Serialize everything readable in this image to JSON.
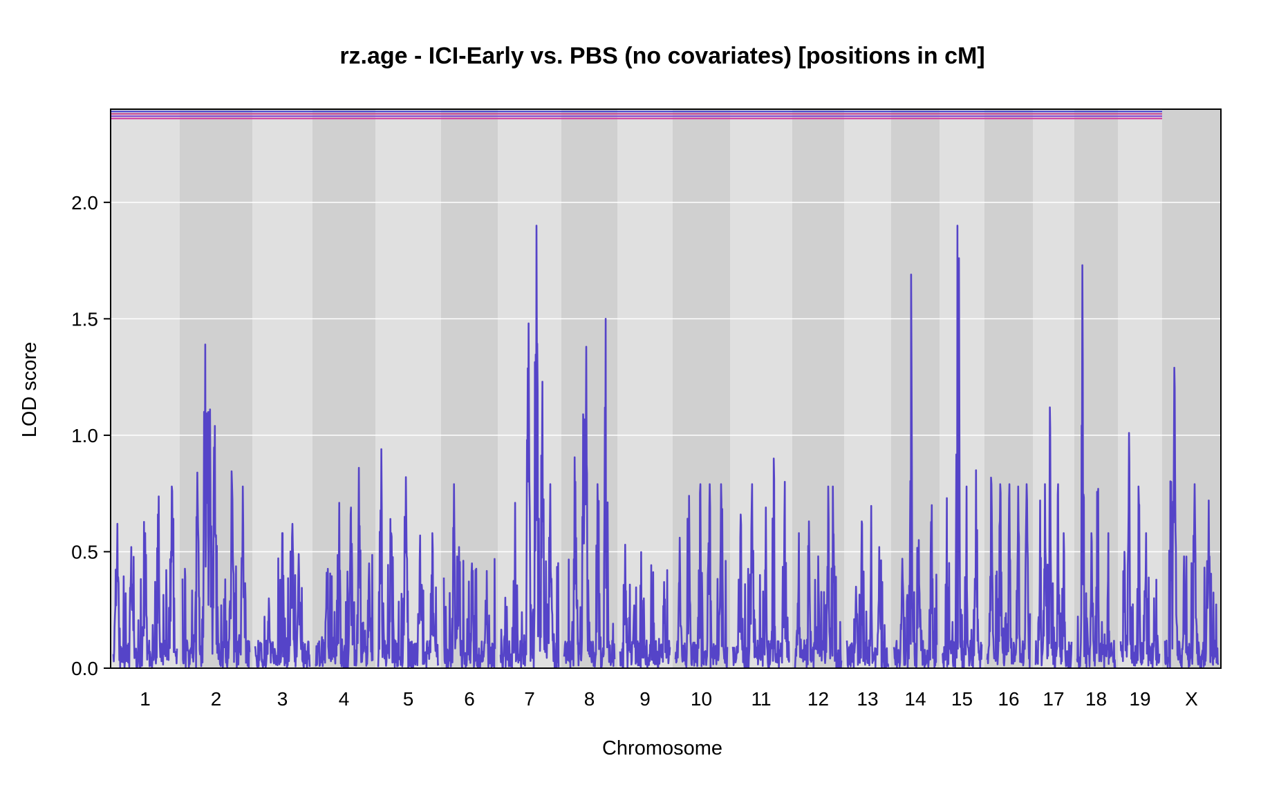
{
  "chart_data": {
    "type": "line",
    "title": "rz.age - ICI-Early vs. PBS (no covariates) [positions in cM]",
    "xlabel": "Chromosome",
    "ylabel": "LOD score",
    "ylim": [
      0,
      2.4
    ],
    "yticks": [
      "0.0",
      "0.5",
      "1.0",
      "1.5",
      "2.0"
    ],
    "ytick_values": [
      0,
      0.5,
      1.0,
      1.5,
      2.0
    ],
    "grid": true,
    "colors": {
      "series": "#5544c8",
      "band_light": "#e0e0e0",
      "band_dark": "#d0d0d0",
      "threshold_lines": [
        "#3a3ad0",
        "#c23a8a",
        "#8040d0",
        "#d0309a"
      ]
    },
    "threshold_lods": [
      2.39,
      2.38,
      2.37,
      2.36
    ],
    "chromosomes": [
      {
        "name": "1",
        "peaks": [
          [
            0.62,
            0.06
          ],
          [
            0.52,
            0.28
          ],
          [
            0.58,
            0.5
          ],
          [
            0.66,
            0.7
          ],
          [
            0.78,
            0.92
          ]
        ]
      },
      {
        "name": "2",
        "peaks": [
          [
            0.84,
            0.22
          ],
          [
            1.39,
            0.34
          ],
          [
            1.1,
            0.4
          ],
          [
            1.04,
            0.48
          ],
          [
            0.79,
            0.74
          ],
          [
            0.78,
            0.9
          ]
        ]
      },
      {
        "name": "3",
        "peaks": [
          [
            0.3,
            0.25
          ],
          [
            0.58,
            0.5
          ],
          [
            0.62,
            0.68
          ],
          [
            0.49,
            0.8
          ]
        ]
      },
      {
        "name": "4",
        "peaks": [
          [
            0.41,
            0.2
          ],
          [
            0.71,
            0.42
          ],
          [
            0.69,
            0.62
          ],
          [
            0.86,
            0.76
          ],
          [
            0.45,
            0.94
          ]
        ]
      },
      {
        "name": "5",
        "peaks": [
          [
            0.94,
            0.05
          ],
          [
            0.58,
            0.22
          ],
          [
            0.82,
            0.46
          ],
          [
            0.57,
            0.7
          ],
          [
            0.58,
            0.9
          ]
        ]
      },
      {
        "name": "6",
        "peaks": [
          [
            0.79,
            0.2
          ],
          [
            0.52,
            0.3
          ],
          [
            0.45,
            0.55
          ],
          [
            0.29,
            0.82
          ]
        ]
      },
      {
        "name": "7",
        "peaks": [
          [
            0.71,
            0.25
          ],
          [
            1.48,
            0.48
          ],
          [
            1.9,
            0.62
          ],
          [
            1.23,
            0.72
          ],
          [
            0.79,
            0.86
          ]
        ]
      },
      {
        "name": "8",
        "peaks": [
          [
            0.8,
            0.22
          ],
          [
            1.09,
            0.38
          ],
          [
            1.38,
            0.44
          ],
          [
            0.79,
            0.66
          ],
          [
            1.5,
            0.82
          ]
        ]
      },
      {
        "name": "9",
        "peaks": [
          [
            0.53,
            0.1
          ],
          [
            0.27,
            0.28
          ],
          [
            0.1,
            0.6
          ],
          [
            0.37,
            0.88
          ]
        ]
      },
      {
        "name": "10",
        "peaks": [
          [
            0.56,
            0.08
          ],
          [
            0.74,
            0.26
          ],
          [
            0.79,
            0.48
          ],
          [
            0.79,
            0.66
          ],
          [
            0.79,
            0.88
          ]
        ]
      },
      {
        "name": "11",
        "peaks": [
          [
            0.66,
            0.14
          ],
          [
            0.79,
            0.34
          ],
          [
            0.69,
            0.58
          ],
          [
            0.9,
            0.72
          ],
          [
            0.8,
            0.92
          ]
        ]
      },
      {
        "name": "12",
        "peaks": [
          [
            0.58,
            0.08
          ],
          [
            0.63,
            0.3
          ],
          [
            0.48,
            0.5
          ],
          [
            0.78,
            0.72
          ],
          [
            0.78,
            0.82
          ]
        ]
      },
      {
        "name": "13",
        "peaks": [
          [
            0.35,
            0.22
          ],
          [
            0.63,
            0.36
          ],
          [
            0.42,
            0.58
          ],
          [
            0.52,
            0.78
          ]
        ]
      },
      {
        "name": "14",
        "peaks": [
          [
            0.47,
            0.2
          ],
          [
            1.69,
            0.4
          ],
          [
            0.55,
            0.58
          ],
          [
            0.7,
            0.88
          ]
        ]
      },
      {
        "name": "15",
        "peaks": [
          [
            0.73,
            0.12
          ],
          [
            1.9,
            0.38
          ],
          [
            1.76,
            0.42
          ],
          [
            0.78,
            0.62
          ],
          [
            0.85,
            0.86
          ]
        ]
      },
      {
        "name": "16",
        "peaks": [
          [
            0.79,
            0.1
          ],
          [
            0.79,
            0.3
          ],
          [
            0.79,
            0.52
          ],
          [
            0.78,
            0.72
          ],
          [
            0.79,
            0.92
          ]
        ]
      },
      {
        "name": "17",
        "peaks": [
          [
            0.72,
            0.12
          ],
          [
            0.79,
            0.26
          ],
          [
            1.12,
            0.4
          ],
          [
            0.79,
            0.62
          ],
          [
            0.58,
            0.78
          ]
        ]
      },
      {
        "name": "18",
        "peaks": [
          [
            1.73,
            0.14
          ],
          [
            0.58,
            0.38
          ],
          [
            0.77,
            0.55
          ],
          [
            0.58,
            0.82
          ]
        ]
      },
      {
        "name": "19",
        "peaks": [
          [
            0.5,
            0.1
          ],
          [
            1.01,
            0.22
          ],
          [
            0.78,
            0.46
          ],
          [
            0.58,
            0.66
          ],
          [
            0.38,
            0.92
          ]
        ]
      },
      {
        "name": "X",
        "peaks": [
          [
            0.8,
            0.12
          ],
          [
            1.29,
            0.18
          ],
          [
            0.48,
            0.36
          ],
          [
            0.79,
            0.56
          ],
          [
            0.72,
            0.82
          ]
        ]
      }
    ]
  }
}
